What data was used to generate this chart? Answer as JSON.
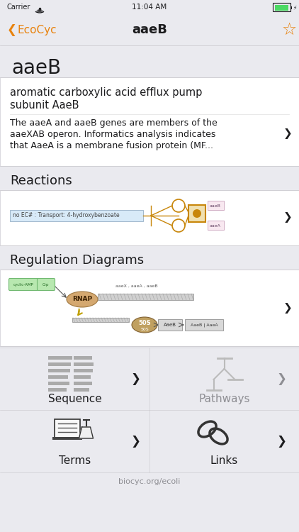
{
  "bg_color": "#eaeaef",
  "white": "#ffffff",
  "orange": "#e8820c",
  "gray_text": "#8e8e93",
  "dark_text": "#1c1c1e",
  "separator_color": "#c8c7cc",
  "carrier_text": "Carrier",
  "status_time": "11:04 AM",
  "nav_title": "aaeB",
  "gene_title": "aaeB",
  "card_title_line1": "aromatic carboxylic acid efflux pump",
  "card_title_line2": "subunit AaeB",
  "card_desc_line1": "The aaeA and aaeB genes are members of the",
  "card_desc_line2": "aaeXAB operon. Informatics analysis indicates",
  "card_desc_line3": "that AaeA is a membrane fusion protein (MF...",
  "reactions_label": "Reactions",
  "rxn_desc": "no EC# : Transport: 4-hydroxybenzoate",
  "reg_label": "Regulation Diagrams",
  "seq_label": "Sequence",
  "pathways_label": "Pathways",
  "terms_label": "Terms",
  "links_label": "Links",
  "footer": "biocyc.org/ecoli",
  "reaction_orange": "#c8860a",
  "reaction_circle_edge": "#c8860a",
  "rxn_box_fill": "#f0e0b0",
  "rxn_blue_fill": "#d8eaf8",
  "rxn_blue_edge": "#a0b8cc",
  "reg_green_fill": "#b8e8b0",
  "reg_green_edge": "#70b870",
  "reg_green_text": "#206820",
  "reg_rnap_fill": "#d4a870",
  "reg_rnap_edge": "#a07840",
  "reg_50s_fill": "#c0a060",
  "reg_box_fill": "#d8d8d8",
  "reg_box_edge": "#909090",
  "dna_fill": "#d0d0d0",
  "dna_edge": "#888888"
}
